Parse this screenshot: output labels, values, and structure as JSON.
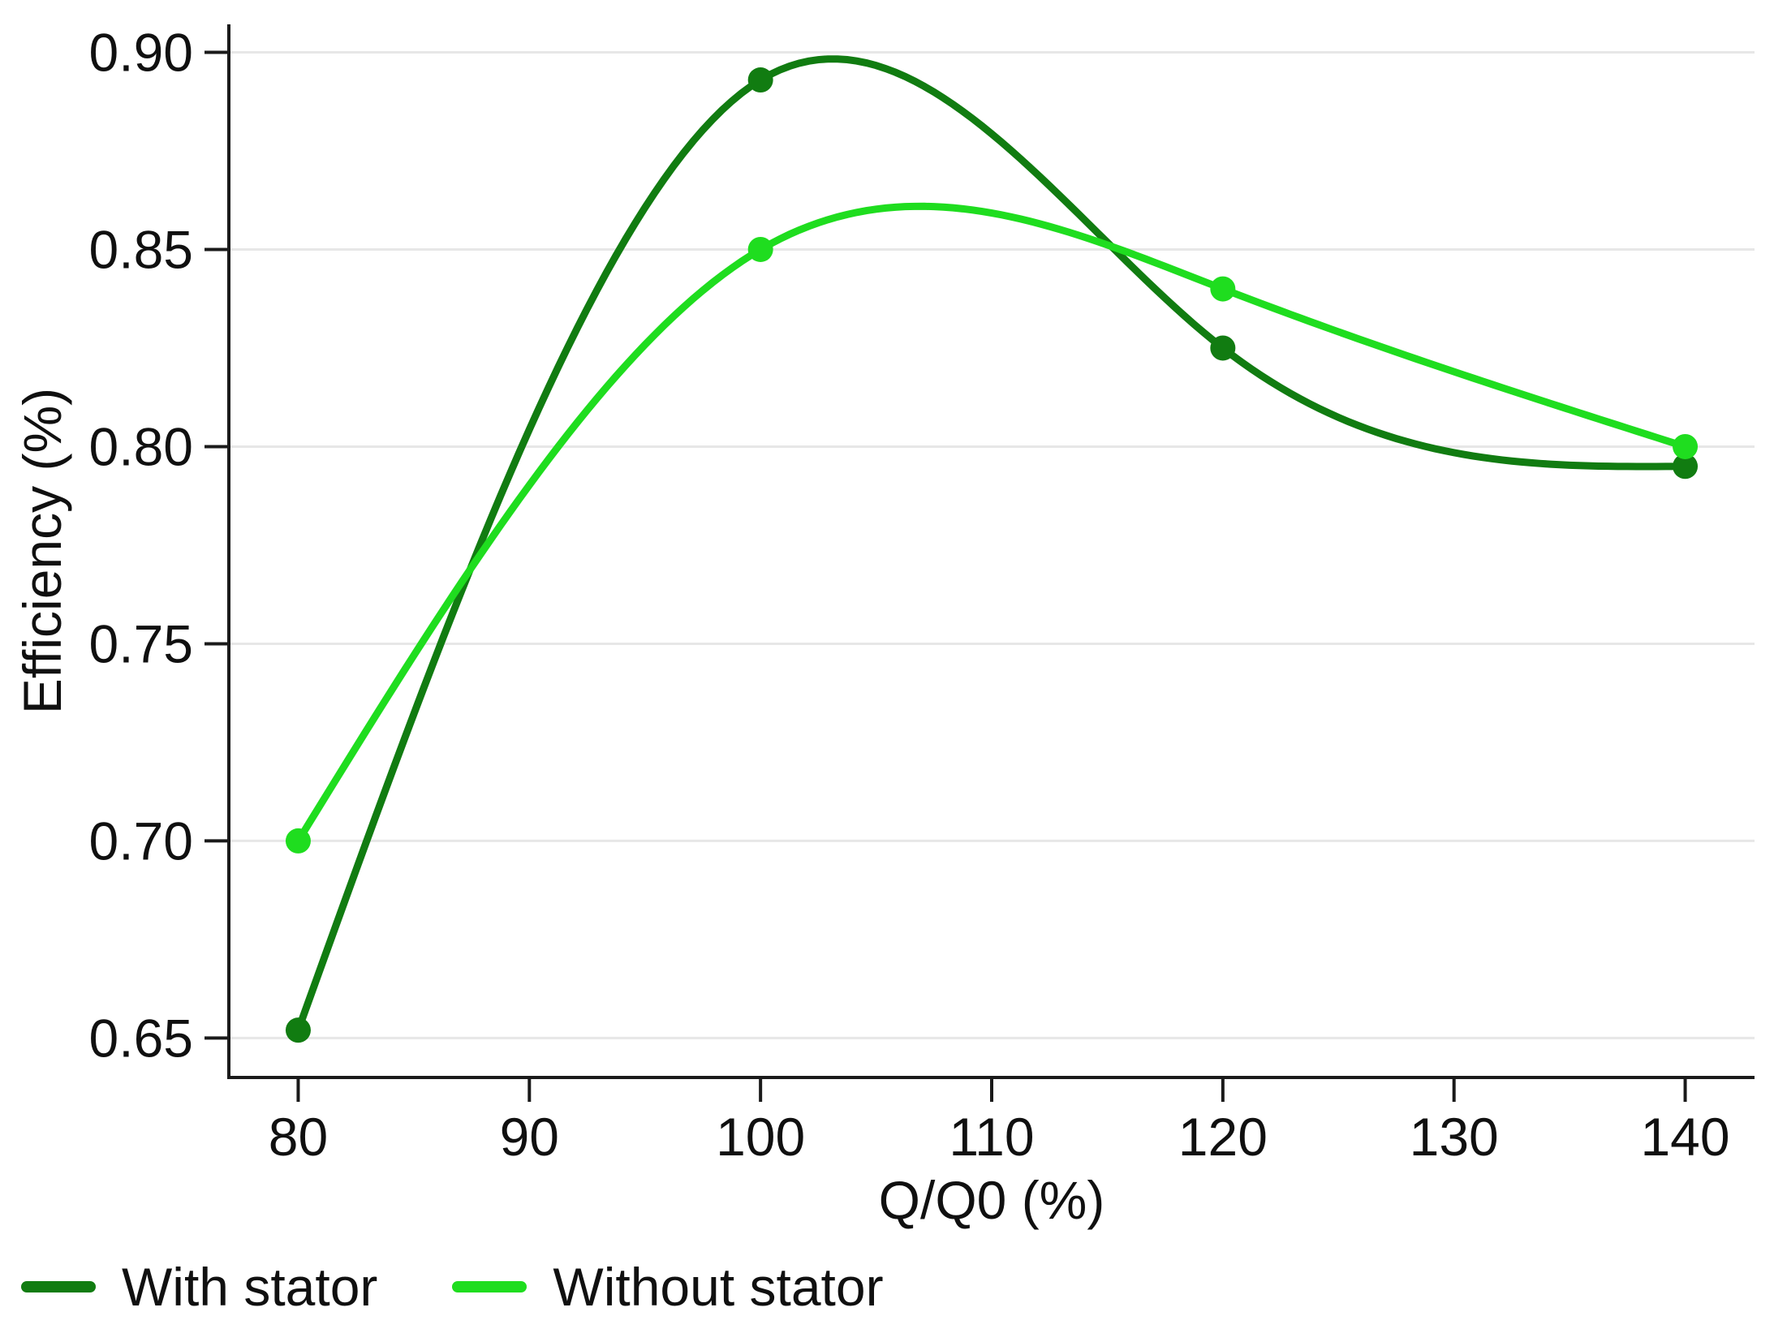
{
  "chart_data": {
    "type": "line",
    "title": "",
    "xlabel": "Q/Q0 (%)",
    "ylabel": "Efficiency (%)",
    "xlim": [
      77,
      143
    ],
    "ylim": [
      0.64,
      0.9071
    ],
    "x_ticks": [
      {
        "value": 80,
        "label": "80"
      },
      {
        "value": 90,
        "label": "90"
      },
      {
        "value": 100,
        "label": "100"
      },
      {
        "value": 110,
        "label": "110"
      },
      {
        "value": 120,
        "label": "120"
      },
      {
        "value": 130,
        "label": "130"
      },
      {
        "value": 140,
        "label": "140"
      }
    ],
    "y_ticks": [
      {
        "value": 0.65,
        "label": "0.65"
      },
      {
        "value": 0.7,
        "label": "0.70"
      },
      {
        "value": 0.75,
        "label": "0.75"
      },
      {
        "value": 0.8,
        "label": "0.80"
      },
      {
        "value": 0.85,
        "label": "0.85"
      },
      {
        "value": 0.9,
        "label": "0.90"
      }
    ],
    "grid": "horizontal-only",
    "curve": "natural-cubic-spline",
    "legend_position": "bottom-left",
    "series": [
      {
        "name": "With stator",
        "color": "#117c11",
        "points": [
          [
            80,
            0.652
          ],
          [
            100,
            0.893
          ],
          [
            120,
            0.825
          ],
          [
            140,
            0.795
          ]
        ]
      },
      {
        "name": "Without stator",
        "color": "#1fdd1f",
        "points": [
          [
            80,
            0.7
          ],
          [
            100,
            0.85
          ],
          [
            120,
            0.84
          ],
          [
            140,
            0.8
          ]
        ]
      }
    ]
  },
  "styles": {
    "background": "#ffffff",
    "grid_color": "#e7e7e7",
    "spine_color": "#1a1a1a",
    "tick_color": "#1a1a1a",
    "text_color": "#101010"
  }
}
